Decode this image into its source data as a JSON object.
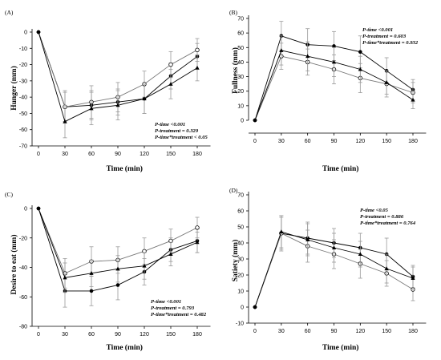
{
  "chart_data": [
    {
      "type": "line",
      "panel": "(A)",
      "title": "",
      "xlabel": "Time (min)",
      "ylabel": "Hunger (mm)",
      "x": [
        0,
        30,
        60,
        90,
        120,
        150,
        180
      ],
      "xticks": [
        "0",
        "30",
        "60",
        "90",
        "120",
        "150",
        "180"
      ],
      "xlim": [
        0,
        195
      ],
      "ylim": [
        -70,
        5
      ],
      "yticks": [
        "0",
        "-10",
        "-20",
        "-30",
        "-40",
        "-50",
        "-60",
        "-70"
      ],
      "ytickvals": [
        0,
        -10,
        -20,
        -30,
        -40,
        -50,
        -60,
        -70
      ],
      "stats": [
        "P-time <0.001",
        "P-treatment = 0.329",
        "P-time*treatment < 0.05"
      ],
      "series": [
        {
          "marker": "filled-circle",
          "values": [
            0,
            -46,
            -45,
            -43,
            -41,
            -27,
            -15
          ],
          "err": [
            0,
            10,
            9,
            8,
            9,
            8,
            8
          ]
        },
        {
          "marker": "open-circle",
          "values": [
            0,
            -46,
            -43,
            -40,
            -32,
            -20,
            -11
          ],
          "err": [
            0,
            9,
            10,
            9,
            8,
            8,
            7
          ]
        },
        {
          "marker": "filled-triangle",
          "values": [
            0,
            -55,
            -47,
            -45,
            -41,
            -32,
            -22
          ],
          "err": [
            0,
            10,
            10,
            9,
            9,
            9,
            8
          ]
        }
      ],
      "grid": false
    },
    {
      "type": "line",
      "panel": "(B)",
      "title": "",
      "xlabel": "Time (min)",
      "ylabel": "Fullness (mm)",
      "x": [
        0,
        30,
        60,
        90,
        120,
        150,
        180
      ],
      "xticks": [
        "0",
        "30",
        "60",
        "90",
        "120",
        "150",
        "180"
      ],
      "xlim": [
        0,
        195
      ],
      "ylim": [
        0,
        70
      ],
      "yticks": [
        "0",
        "10",
        "20",
        "30",
        "40",
        "50",
        "60",
        "70"
      ],
      "ytickvals": [
        0,
        10,
        20,
        30,
        40,
        50,
        60,
        70
      ],
      "stats": [
        "P-time <0.001",
        "P-treatment = 0.603",
        "P-time*treatment = 0.932"
      ],
      "series": [
        {
          "marker": "filled-circle",
          "values": [
            0,
            58,
            52,
            51,
            47,
            34,
            21
          ],
          "err": [
            0,
            10,
            11,
            10,
            11,
            9,
            7
          ]
        },
        {
          "marker": "open-circle",
          "values": [
            0,
            44,
            40,
            35,
            29,
            25,
            19
          ],
          "err": [
            0,
            9,
            9,
            10,
            10,
            9,
            7
          ]
        },
        {
          "marker": "filled-triangle",
          "values": [
            0,
            48,
            44,
            40,
            35,
            26,
            14
          ],
          "err": [
            0,
            10,
            10,
            10,
            9,
            8,
            6
          ]
        }
      ],
      "grid": false
    },
    {
      "type": "line",
      "panel": "(C)",
      "title": "",
      "xlabel": "Time (min)",
      "ylabel": "Desire to eat (mm)",
      "x": [
        0,
        30,
        60,
        90,
        120,
        150,
        180
      ],
      "xticks": [
        "0",
        "30",
        "60",
        "90",
        "120",
        "150",
        "180"
      ],
      "xlim": [
        0,
        195
      ],
      "ylim": [
        -80,
        10
      ],
      "yticks": [
        "0",
        "-20",
        "-40",
        "-60",
        "-80"
      ],
      "ytickvals": [
        0,
        -20,
        -40,
        -60,
        -80
      ],
      "stats": [
        "P-time <0.001",
        "P-treatment = 0.793",
        "P-time*treatment = 0.482"
      ],
      "series": [
        {
          "marker": "filled-circle",
          "values": [
            0,
            -56,
            -56,
            -52,
            -43,
            -28,
            -22
          ],
          "err": [
            0,
            11,
            10,
            10,
            9,
            8,
            8
          ]
        },
        {
          "marker": "open-circle",
          "values": [
            0,
            -44,
            -36,
            -35,
            -29,
            -22,
            -13
          ],
          "err": [
            0,
            10,
            10,
            9,
            9,
            8,
            7
          ]
        },
        {
          "marker": "filled-triangle",
          "values": [
            0,
            -47,
            -44,
            -41,
            -39,
            -31,
            -23
          ],
          "err": [
            0,
            10,
            9,
            9,
            9,
            8,
            7
          ]
        }
      ],
      "grid": false
    },
    {
      "type": "line",
      "panel": "(D)",
      "title": "",
      "xlabel": "Time (min)",
      "ylabel": "Satiety (mm)",
      "x": [
        0,
        30,
        60,
        90,
        120,
        150,
        180
      ],
      "xticks": [
        "0",
        "30",
        "60",
        "90",
        "120",
        "150",
        "180"
      ],
      "xlim": [
        0,
        195
      ],
      "ylim": [
        -10,
        70
      ],
      "yticks": [
        "-10",
        "0",
        "10",
        "20",
        "30",
        "40",
        "50",
        "60",
        "70"
      ],
      "ytickvals": [
        -10,
        0,
        10,
        20,
        30,
        40,
        50,
        60,
        70
      ],
      "stats": [
        "P-time <0.05",
        "P-treatment = 0.886",
        "P-time*treatment = 0.764"
      ],
      "series": [
        {
          "marker": "filled-circle",
          "values": [
            0,
            46,
            43,
            40,
            37,
            33,
            19
          ],
          "err": [
            0,
            11,
            10,
            9,
            9,
            10,
            7
          ]
        },
        {
          "marker": "open-circle",
          "values": [
            0,
            46,
            38,
            33,
            27,
            21,
            11
          ],
          "err": [
            0,
            10,
            10,
            9,
            9,
            8,
            7
          ]
        },
        {
          "marker": "filled-triangle",
          "values": [
            0,
            47,
            42,
            37,
            33,
            24,
            18
          ],
          "err": [
            0,
            10,
            10,
            9,
            8,
            9,
            7
          ]
        }
      ],
      "grid": false
    }
  ]
}
